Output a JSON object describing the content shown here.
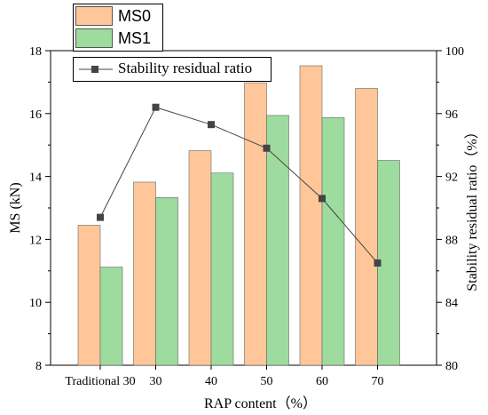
{
  "chart_data": {
    "type": "bar",
    "categories": [
      "Traditional 30",
      "30",
      "40",
      "50",
      "60",
      "70"
    ],
    "series": [
      {
        "name": "MS0",
        "axis": "left",
        "color": "#FFC799",
        "values": [
          12.45,
          13.82,
          14.82,
          16.98,
          17.52,
          16.8
        ]
      },
      {
        "name": "MS1",
        "axis": "left",
        "color": "#9EDB9E",
        "values": [
          11.12,
          13.33,
          14.11,
          15.94,
          15.87,
          14.51
        ]
      },
      {
        "name": "Stability residual ratio",
        "axis": "right",
        "type": "line",
        "color": "#444444",
        "values": [
          89.4,
          96.4,
          95.3,
          93.8,
          90.6,
          86.5
        ]
      }
    ],
    "xlabel": "RAP content（%）",
    "ylabel_left": "MS (kN)",
    "ylabel_right": "Stability residual ratio（%）",
    "ylim_left": [
      8,
      18
    ],
    "ylim_right": [
      80,
      100
    ],
    "yticks_left": [
      "8",
      "10",
      "12",
      "14",
      "16",
      "18"
    ],
    "yticks_right": [
      "80",
      "84",
      "88",
      "92",
      "96",
      "100"
    ],
    "legend_position": "top-left",
    "grid": false
  }
}
